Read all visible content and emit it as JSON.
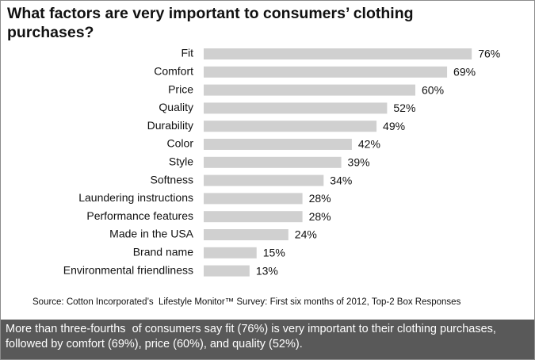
{
  "chart_data": {
    "type": "bar",
    "orientation": "horizontal",
    "title": "What factors are very important to consumers’ clothing purchases?",
    "categories": [
      "Fit",
      "Comfort",
      "Price",
      "Quality",
      "Durability",
      "Color",
      "Style",
      "Softness",
      "Laundering instructions",
      "Performance features",
      "Made in the USA",
      "Brand name",
      "Environmental friendliness"
    ],
    "values": [
      76,
      69,
      60,
      52,
      49,
      42,
      39,
      34,
      28,
      28,
      24,
      15,
      13
    ],
    "value_labels": [
      "76%",
      "69%",
      "60%",
      "52%",
      "49%",
      "42%",
      "39%",
      "34%",
      "28%",
      "28%",
      "24%",
      "15%",
      "13%"
    ],
    "color": "#d0d0d0",
    "source": "Source: Cotton Incorporated’s  Lifestyle Monitor™ Survey: First six months of 2012, Top-2 Box Responses",
    "caption": "More than three-fourths  of consumers say fit (76%) is very important to their clothing purchases, followed by comfort (69%), price (60%), and quality (52%)."
  }
}
